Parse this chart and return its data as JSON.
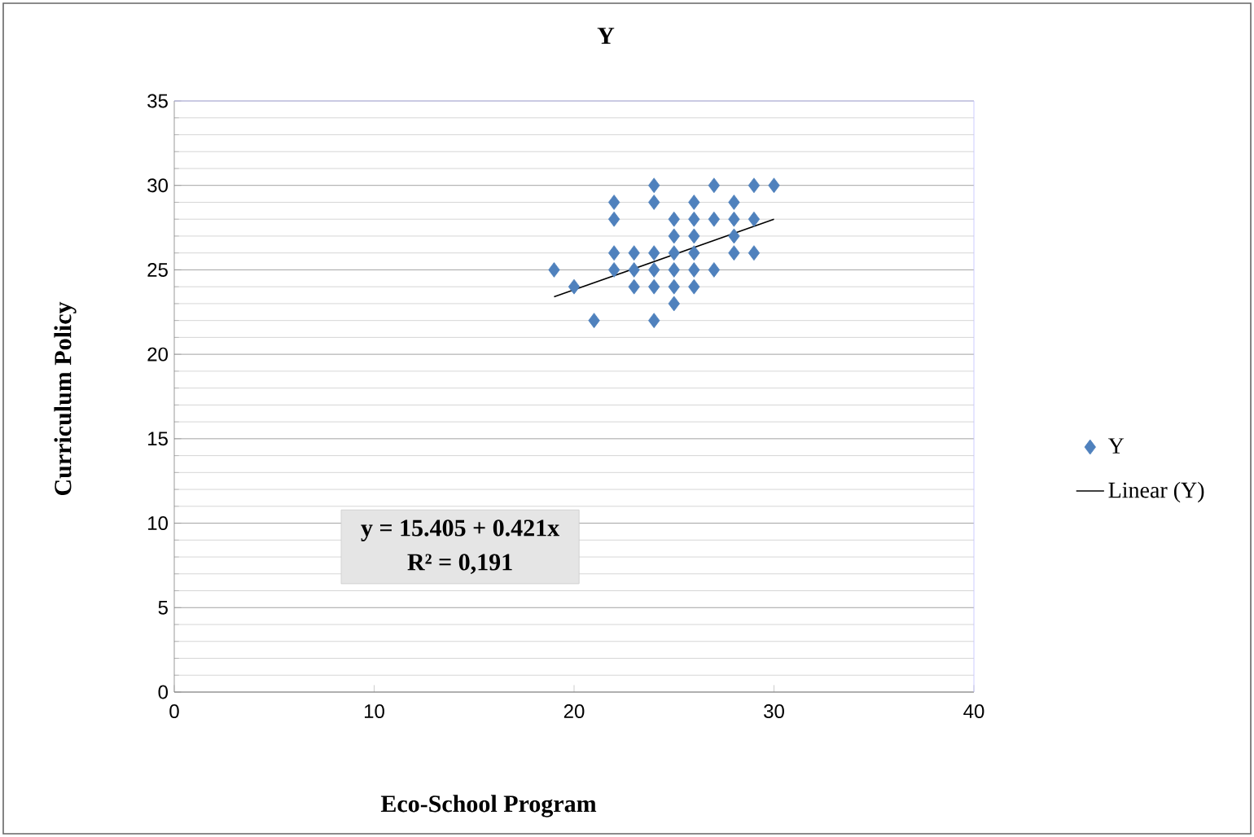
{
  "chart_data": {
    "type": "scatter",
    "title": "Y",
    "xlabel": "Eco-School Program",
    "ylabel": "Curriculum Policy",
    "xlim": [
      0,
      40
    ],
    "xticks": [
      0,
      10,
      20,
      30,
      40
    ],
    "ylim": [
      0,
      35
    ],
    "yticks": [
      0,
      5,
      10,
      15,
      20,
      25,
      30,
      35
    ],
    "grid": "y",
    "legend": "right",
    "annotations": [
      "y = 15.405 +  0.421x",
      "R² = 0,191"
    ],
    "series": [
      {
        "name": "Y",
        "marker": "diamond",
        "color": "#4f81bd",
        "x": [
          19,
          20,
          21,
          22,
          22,
          22,
          22,
          23,
          23,
          23,
          24,
          24,
          24,
          24,
          24,
          24,
          25,
          25,
          25,
          25,
          25,
          25,
          26,
          26,
          26,
          26,
          26,
          26,
          27,
          27,
          27,
          28,
          28,
          28,
          28,
          29,
          29,
          29,
          30
        ],
        "values": [
          25,
          24,
          22,
          29,
          28,
          26,
          25,
          26,
          25,
          24,
          30,
          29,
          26,
          25,
          24,
          22,
          28,
          27,
          26,
          25,
          24,
          23,
          29,
          28,
          27,
          26,
          25,
          24,
          30,
          28,
          25,
          29,
          28,
          27,
          26,
          30,
          28,
          26,
          30
        ]
      },
      {
        "name": "Linear (Y)",
        "type": "line",
        "marker": "none",
        "color": "#000000",
        "x": [
          19,
          30
        ],
        "values": [
          23.4,
          28.0
        ]
      }
    ]
  }
}
